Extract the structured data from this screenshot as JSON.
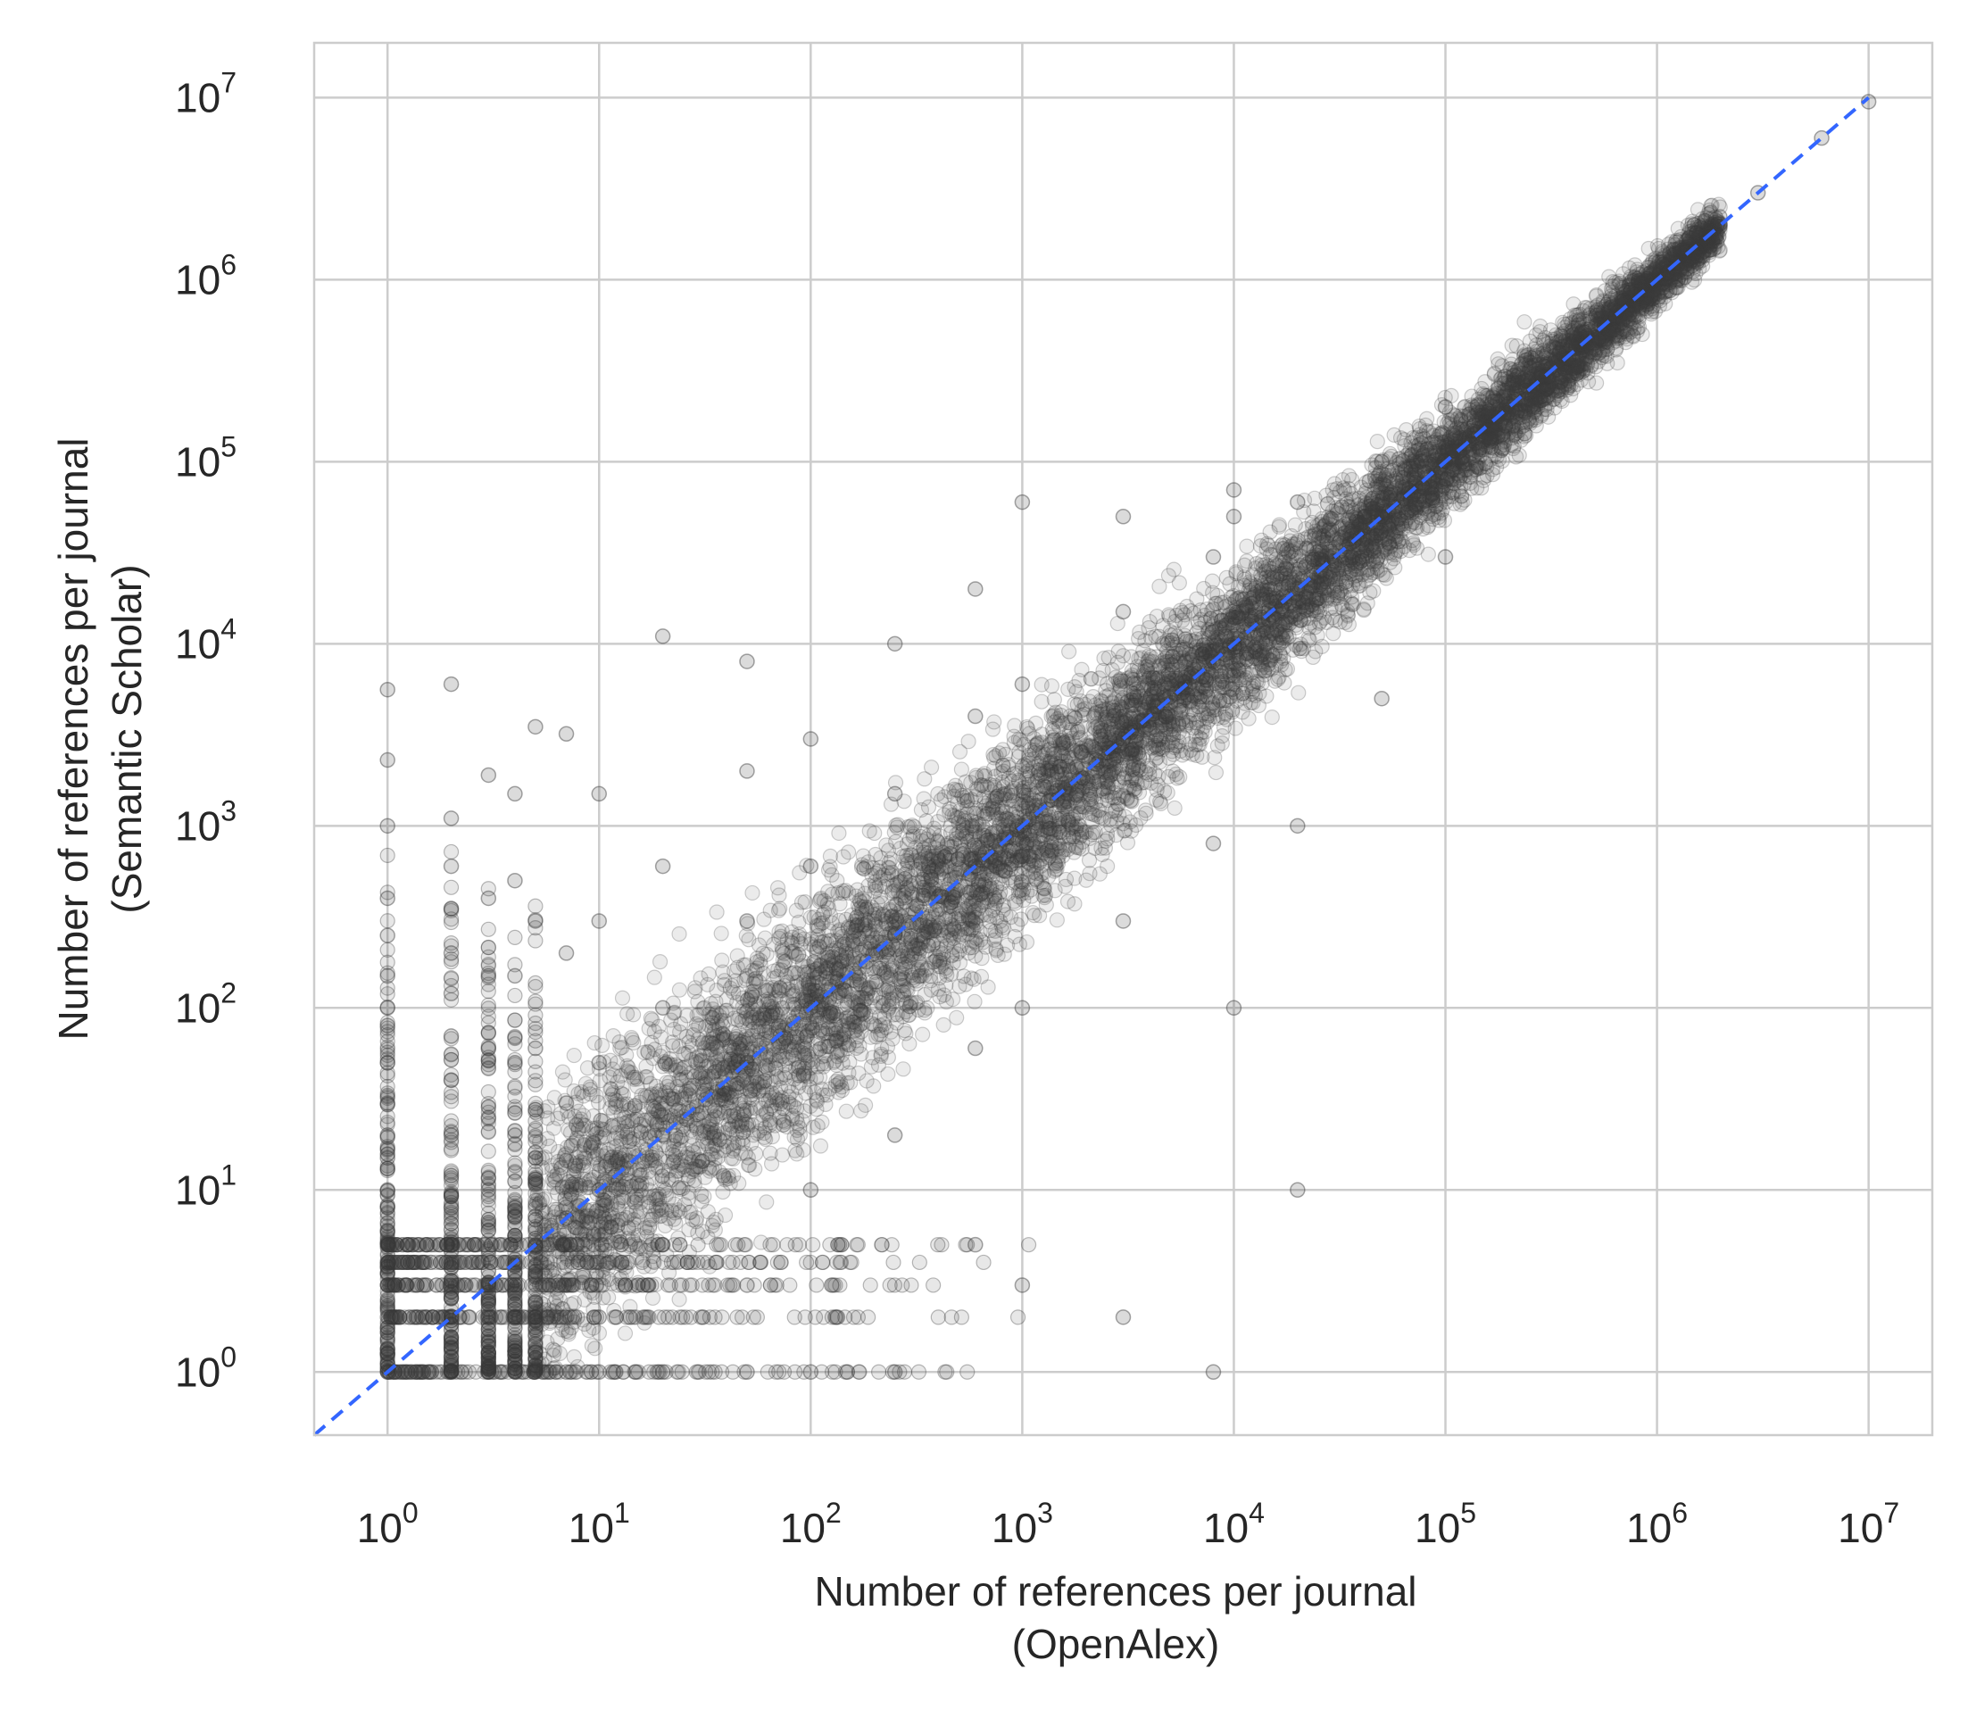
{
  "chart_data": {
    "type": "scatter",
    "title": "",
    "xlabel": [
      "Number of references per journal",
      "(OpenAlex)"
    ],
    "ylabel": [
      "Number of references per journal",
      "(Semantic Scholar)"
    ],
    "x_scale": "log",
    "y_scale": "log",
    "xlim": [
      0.45,
      20000000
    ],
    "ylim": [
      0.45,
      20000000
    ],
    "x_ticks": [
      {
        "base": "10",
        "exp": "0"
      },
      {
        "base": "10",
        "exp": "1"
      },
      {
        "base": "10",
        "exp": "2"
      },
      {
        "base": "10",
        "exp": "3"
      },
      {
        "base": "10",
        "exp": "4"
      },
      {
        "base": "10",
        "exp": "5"
      },
      {
        "base": "10",
        "exp": "6"
      },
      {
        "base": "10",
        "exp": "7"
      }
    ],
    "y_ticks": [
      {
        "base": "10",
        "exp": "0"
      },
      {
        "base": "10",
        "exp": "1"
      },
      {
        "base": "10",
        "exp": "2"
      },
      {
        "base": "10",
        "exp": "3"
      },
      {
        "base": "10",
        "exp": "4"
      },
      {
        "base": "10",
        "exp": "5"
      },
      {
        "base": "10",
        "exp": "6"
      },
      {
        "base": "10",
        "exp": "7"
      }
    ],
    "grid": true,
    "point_color": "#3a3a3a",
    "reference_line": {
      "style": "dashed",
      "color": "#3366ff",
      "from": [
        0.45,
        0.45
      ],
      "to": [
        10000000,
        10000000
      ]
    },
    "series": [
      {
        "description_points": "approximate sample of journals (x = OpenAlex references, y = Semantic Scholar references)",
        "points": [
          [
            1,
            1
          ],
          [
            1,
            2
          ],
          [
            1,
            3
          ],
          [
            1,
            4
          ],
          [
            1,
            5
          ],
          [
            1,
            6
          ],
          [
            1,
            8
          ],
          [
            1,
            10
          ],
          [
            1,
            15
          ],
          [
            1,
            20
          ],
          [
            1,
            30
          ],
          [
            1,
            50
          ],
          [
            1,
            80
          ],
          [
            1,
            100
          ],
          [
            1,
            150
          ],
          [
            1,
            250
          ],
          [
            1,
            400
          ],
          [
            1,
            1000
          ],
          [
            1,
            2300
          ],
          [
            1,
            5600
          ],
          [
            2,
            1
          ],
          [
            2,
            2
          ],
          [
            2,
            3
          ],
          [
            2,
            5
          ],
          [
            2,
            8
          ],
          [
            2,
            12
          ],
          [
            2,
            20
          ],
          [
            2,
            40
          ],
          [
            2,
            70
          ],
          [
            2,
            120
          ],
          [
            2,
            200
          ],
          [
            2,
            350
          ],
          [
            2,
            600
          ],
          [
            2,
            1100
          ],
          [
            2,
            6000
          ],
          [
            3,
            1
          ],
          [
            3,
            2
          ],
          [
            3,
            3
          ],
          [
            3,
            6
          ],
          [
            3,
            10
          ],
          [
            3,
            25
          ],
          [
            3,
            60
          ],
          [
            3,
            150
          ],
          [
            3,
            400
          ],
          [
            3,
            1900
          ],
          [
            4,
            1
          ],
          [
            4,
            2
          ],
          [
            4,
            3
          ],
          [
            4,
            4
          ],
          [
            4,
            8
          ],
          [
            4,
            20
          ],
          [
            4,
            50
          ],
          [
            4,
            150
          ],
          [
            4,
            500
          ],
          [
            4,
            1500
          ],
          [
            5,
            1
          ],
          [
            5,
            2
          ],
          [
            5,
            5
          ],
          [
            5,
            15
          ],
          [
            5,
            60
          ],
          [
            5,
            300
          ],
          [
            5,
            3500
          ],
          [
            7,
            1
          ],
          [
            7,
            3
          ],
          [
            7,
            7
          ],
          [
            7,
            30
          ],
          [
            7,
            200
          ],
          [
            7,
            3200
          ],
          [
            10,
            1
          ],
          [
            10,
            2
          ],
          [
            10,
            10
          ],
          [
            10,
            50
          ],
          [
            10,
            300
          ],
          [
            10,
            1500
          ],
          [
            20,
            1
          ],
          [
            20,
            5
          ],
          [
            20,
            20
          ],
          [
            20,
            100
          ],
          [
            20,
            600
          ],
          [
            20,
            11000
          ],
          [
            50,
            1
          ],
          [
            50,
            3
          ],
          [
            50,
            50
          ],
          [
            50,
            300
          ],
          [
            50,
            2000
          ],
          [
            50,
            8000
          ],
          [
            100,
            1
          ],
          [
            100,
            10
          ],
          [
            100,
            100
          ],
          [
            100,
            600
          ],
          [
            100,
            3000
          ],
          [
            250,
            1
          ],
          [
            250,
            20
          ],
          [
            250,
            250
          ],
          [
            250,
            1500
          ],
          [
            250,
            10000
          ],
          [
            600,
            5
          ],
          [
            600,
            60
          ],
          [
            600,
            600
          ],
          [
            600,
            4000
          ],
          [
            600,
            20000
          ],
          [
            1000,
            3
          ],
          [
            1000,
            100
          ],
          [
            1000,
            1000
          ],
          [
            1000,
            6000
          ],
          [
            1000,
            60000
          ],
          [
            3000,
            2
          ],
          [
            3000,
            300
          ],
          [
            3000,
            3000
          ],
          [
            3000,
            15000
          ],
          [
            3000,
            50000
          ],
          [
            8000,
            1
          ],
          [
            8000,
            800
          ],
          [
            8000,
            8000
          ],
          [
            8000,
            30000
          ],
          [
            10000,
            100
          ],
          [
            10000,
            10000
          ],
          [
            10000,
            50000
          ],
          [
            10000,
            70000
          ],
          [
            20000,
            10
          ],
          [
            20000,
            1000
          ],
          [
            20000,
            20000
          ],
          [
            20000,
            60000
          ],
          [
            50000,
            5000
          ],
          [
            50000,
            50000
          ],
          [
            50000,
            100000
          ],
          [
            100000,
            30000
          ],
          [
            100000,
            100000
          ],
          [
            100000,
            200000
          ],
          [
            300000,
            300000
          ],
          [
            300000,
            250000
          ],
          [
            1000000,
            1000000
          ],
          [
            1500000,
            2000000
          ],
          [
            3000000,
            3000000
          ],
          [
            6000000,
            6000000
          ],
          [
            10000000,
            9500000
          ]
        ]
      }
    ]
  }
}
